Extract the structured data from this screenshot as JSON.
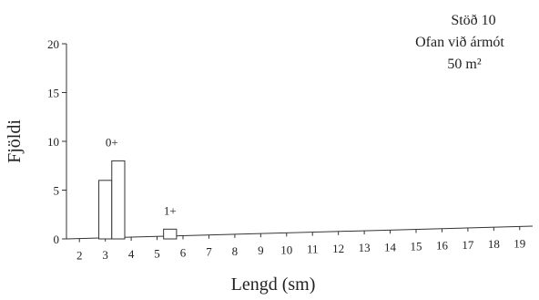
{
  "chart_data": {
    "type": "bar",
    "title": "",
    "info_lines": [
      "Stöð 10",
      "Ofan við ármót",
      "50 m²"
    ],
    "xlabel": "Lengd (sm)",
    "ylabel": "Fjöldi",
    "x_ticks": [
      "2",
      "3",
      "4",
      "5",
      "6",
      "7",
      "8",
      "9",
      "10",
      "11",
      "12",
      "13",
      "14",
      "15",
      "16",
      "17",
      "18",
      "19"
    ],
    "y_ticks": [
      "0",
      "5",
      "10",
      "15",
      "20"
    ],
    "xlim": [
      1.5,
      19.5
    ],
    "ylim": [
      0,
      20
    ],
    "bin_width": 0.5,
    "bars": [
      {
        "x": 3.0,
        "value": 6
      },
      {
        "x": 3.5,
        "value": 8
      },
      {
        "x": 5.5,
        "value": 1
      }
    ],
    "annotations": [
      {
        "text": "0+",
        "x_from": 2.75,
        "x_to": 3.75,
        "y": 9
      },
      {
        "text": "1+",
        "x_from": 5.25,
        "x_to": 5.75,
        "y": 2
      }
    ],
    "grid": false,
    "legend": "none"
  }
}
